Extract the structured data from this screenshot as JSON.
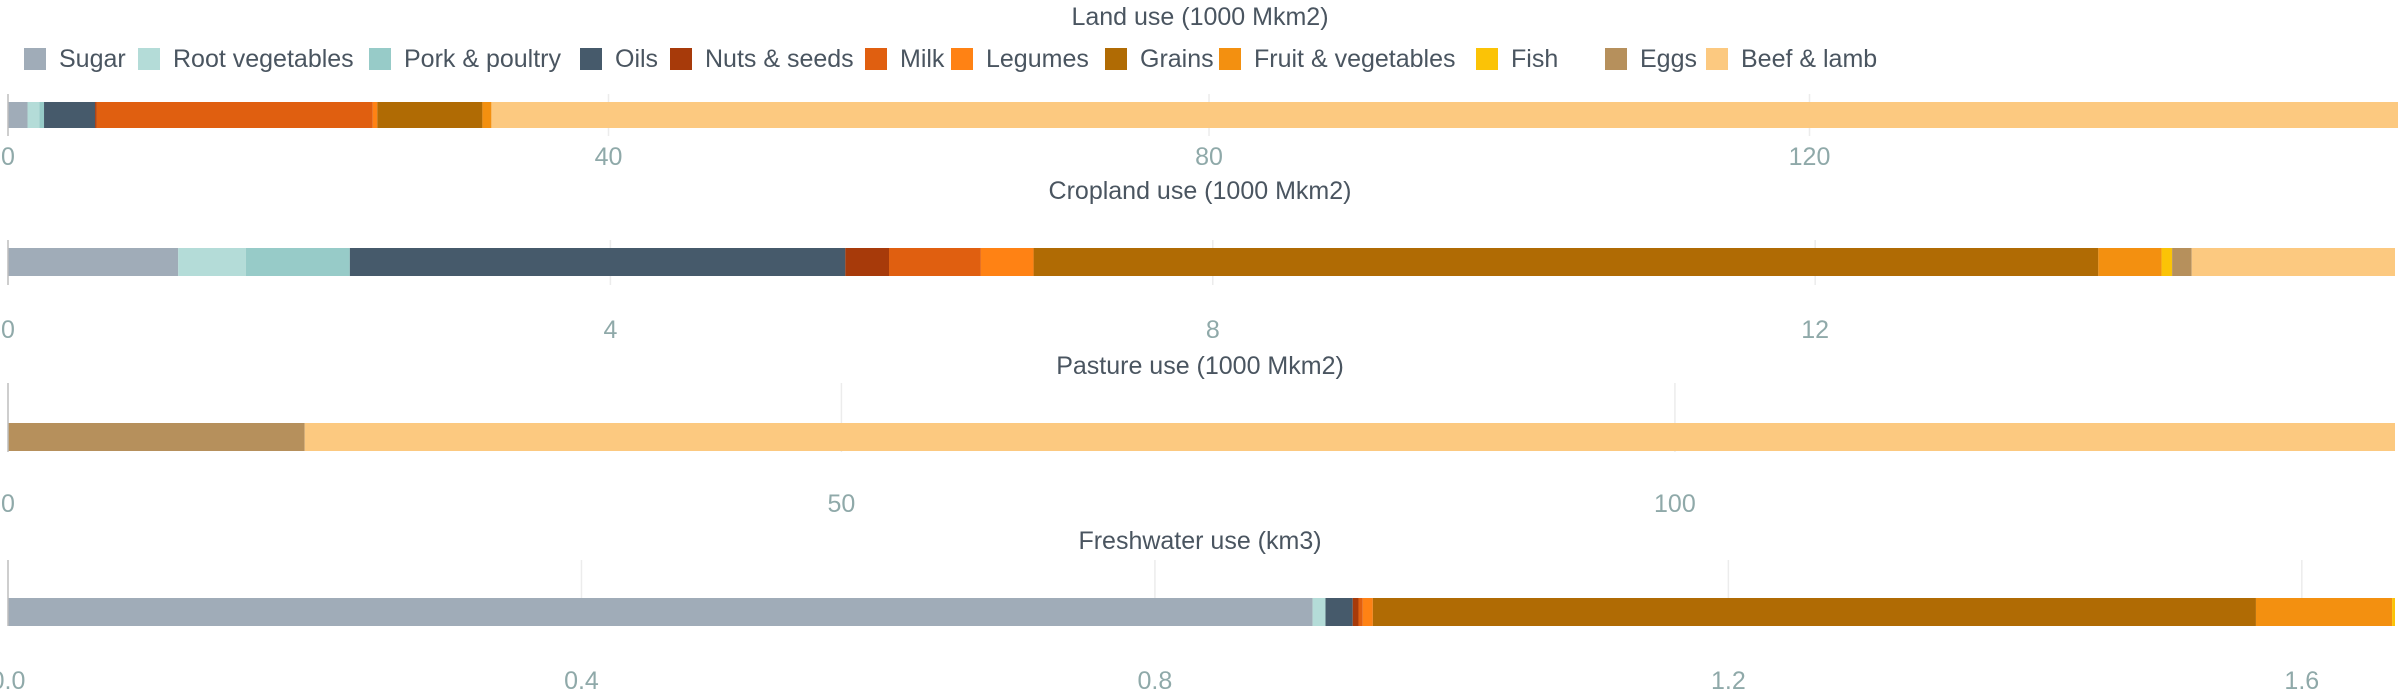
{
  "chart_data": {
    "type": "bar",
    "orientation": "horizontal",
    "stacked": true,
    "legend_position": "top",
    "categories": [
      "Sugar",
      "Root vegetables",
      "Pork & poultry",
      "Oils",
      "Nuts & seeds",
      "Milk",
      "Legumes",
      "Grains",
      "Fruit & vegetables",
      "Fish",
      "Eggs",
      "Beef & lamb"
    ],
    "colors": [
      "#a0acb8",
      "#b4dcd8",
      "#97cbc8",
      "#465a6b",
      "#a73a0a",
      "#e05f10",
      "#ff8214",
      "#b06b04",
      "#f39010",
      "#fbc306",
      "#b6905c",
      "#fcc980"
    ],
    "panels": [
      {
        "title": "Land use (1000 Mkm2)",
        "xlim": [
          0,
          159
        ],
        "ticks": [
          0,
          40,
          80,
          120
        ],
        "tick_labels": [
          "0",
          "40",
          "80",
          "120"
        ],
        "values": [
          1.3,
          0.8,
          0.3,
          3.4,
          0.1,
          18.4,
          0.3,
          7.0,
          0.6,
          0.0,
          0.0,
          127.0
        ]
      },
      {
        "title": "Cropland use (1000 Mkm2)",
        "xlim": [
          0,
          15.85
        ],
        "ticks": [
          0,
          4,
          8,
          12
        ],
        "tick_labels": [
          "0",
          "4",
          "8",
          "12"
        ],
        "values": [
          1.13,
          0.45,
          0.69,
          3.29,
          0.29,
          0.61,
          0.35,
          7.07,
          0.42,
          0.07,
          0.13,
          1.35
        ]
      },
      {
        "title": "Pasture use (1000 Mkm2)",
        "xlim": [
          0,
          143.2
        ],
        "ticks": [
          0,
          50,
          100
        ],
        "tick_labels": [
          "0",
          "50",
          "100"
        ],
        "values": [
          0,
          0,
          0,
          0,
          0,
          0,
          0,
          0,
          0,
          0,
          17.8,
          125.4
        ]
      },
      {
        "title": "Freshwater use (km3)",
        "xlim": [
          0,
          1.665
        ],
        "ticks": [
          0,
          0.4,
          0.8,
          1.2,
          1.6
        ],
        "tick_labels": [
          "0.0",
          "0.4",
          "0.8",
          "1.2",
          "1.6"
        ],
        "values": [
          0.91,
          0.009,
          0.0,
          0.019,
          0.004,
          0.003,
          0.007,
          0.616,
          0.095,
          0.002,
          0.0,
          0.0
        ]
      }
    ]
  }
}
